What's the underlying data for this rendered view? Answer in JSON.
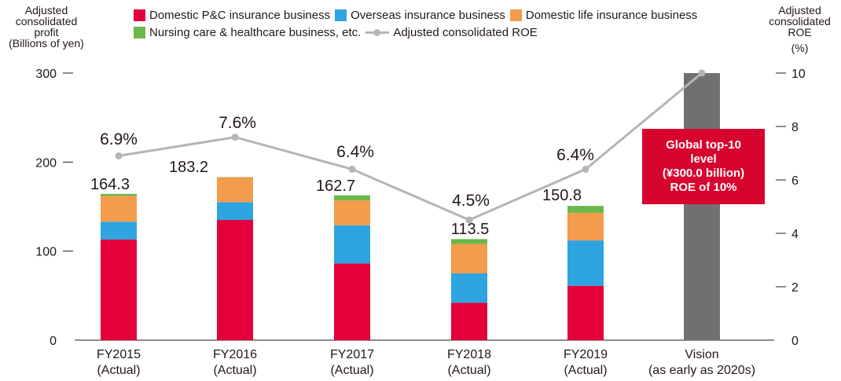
{
  "left_axis_title": [
    "Adjusted",
    "consolidated",
    "profit",
    "(Billions of yen)"
  ],
  "right_axis_title": [
    "Adjusted",
    "consolidated",
    "ROE",
    "(%)"
  ],
  "legend": [
    {
      "label": "Domestic P&C insurance business",
      "color": "#e4003a"
    },
    {
      "label": "Overseas insurance business",
      "color": "#2ea4e0"
    },
    {
      "label": "Domestic life insurance business",
      "color": "#f29c4c"
    },
    {
      "label": "Nursing care & healthcare business, etc.",
      "color": "#6ab84a"
    },
    {
      "label": "Adjusted consolidated ROE",
      "color": "#b5b5b6"
    }
  ],
  "callout": [
    "Global top-10",
    "level",
    "(¥300.0 billion)",
    "ROE of 10%"
  ],
  "chart_data": {
    "type": "bar",
    "stacked": true,
    "categories": [
      [
        "FY2015",
        "(Actual)"
      ],
      [
        "FY2016",
        "(Actual)"
      ],
      [
        "FY2017",
        "(Actual)"
      ],
      [
        "FY2018",
        "(Actual)"
      ],
      [
        "FY2019",
        "(Actual)"
      ],
      [
        "Vision",
        "(as early as 2020s)"
      ]
    ],
    "series": [
      {
        "name": "Domestic P&C insurance business",
        "color": "#e4003a",
        "values": [
          113,
          135,
          86,
          42,
          61,
          null
        ]
      },
      {
        "name": "Overseas insurance business",
        "color": "#2ea4e0",
        "values": [
          20,
          20,
          43,
          33,
          51,
          null
        ]
      },
      {
        "name": "Domestic life insurance business",
        "color": "#f29c4c",
        "values": [
          29,
          28,
          28,
          33,
          31,
          null
        ]
      },
      {
        "name": "Nursing care & healthcare business, etc.",
        "color": "#6ab84a",
        "values": [
          2.3,
          0.2,
          5.7,
          5.5,
          7.8,
          null
        ]
      },
      {
        "name": "",
        "color": "#717071",
        "values": [
          null,
          null,
          null,
          null,
          null,
          300
        ]
      }
    ],
    "totals": [
      "164.3",
      "183.2",
      "162.7",
      "113.5",
      "150.8",
      null
    ],
    "roe": {
      "name": "Adjusted consolidated ROE",
      "color": "#b5b5b6",
      "values": [
        6.9,
        7.6,
        6.4,
        4.5,
        6.4,
        10
      ],
      "labels": [
        "6.9%",
        "7.6%",
        "6.4%",
        "4.5%",
        "6.4%",
        null
      ]
    },
    "ylim_left": [
      0,
      300
    ],
    "yticks_left": [
      0,
      100,
      200,
      300
    ],
    "ylim_right": [
      0,
      10
    ],
    "yticks_right": [
      0,
      2,
      4,
      6,
      8,
      10
    ]
  }
}
